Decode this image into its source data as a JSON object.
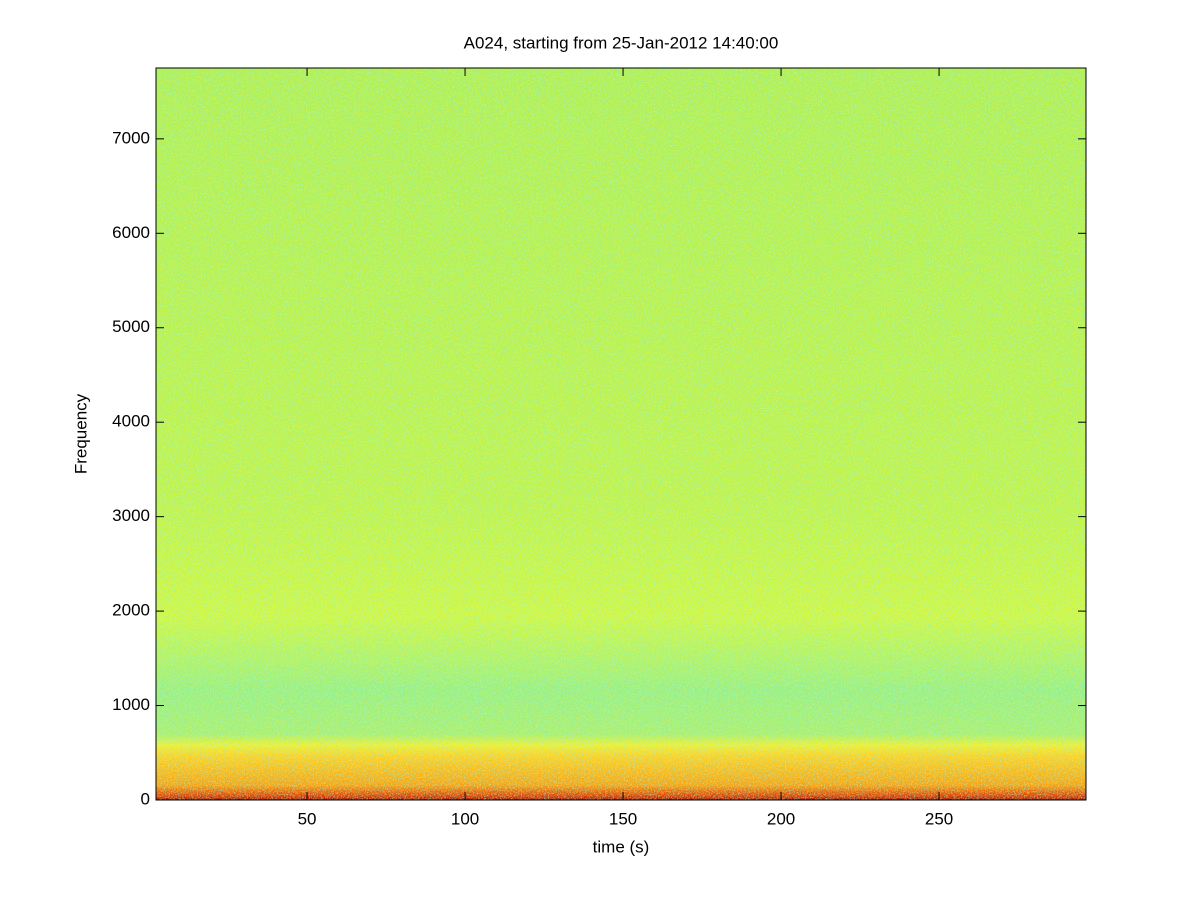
{
  "chart_data": {
    "type": "spectrogram",
    "title": "A024, starting from 25-Jan-2012 14:40:00",
    "x_label": "time (s)",
    "y_label": "Frequency",
    "xlim": [
      2.2,
      296.5
    ],
    "ylim": [
      0,
      7750
    ],
    "xticks": [
      50,
      100,
      150,
      200,
      250
    ],
    "yticks": [
      0,
      1000,
      2000,
      3000,
      4000,
      5000,
      6000,
      7000
    ]
  }
}
